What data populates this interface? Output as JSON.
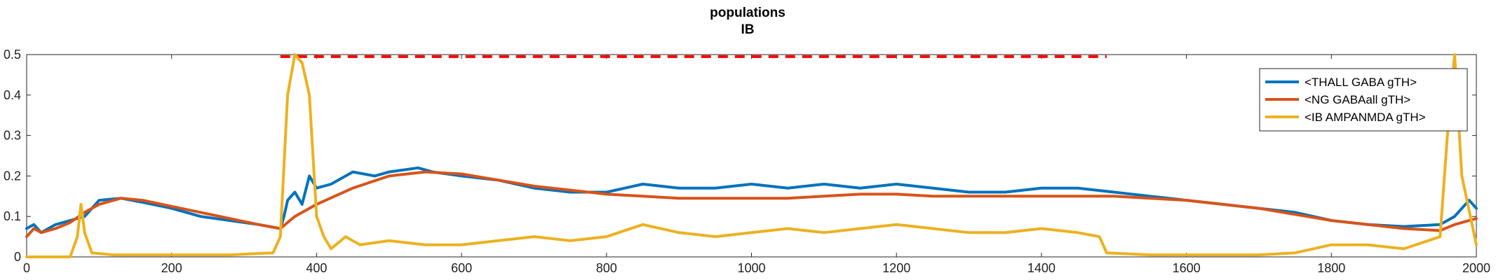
{
  "chart_data": {
    "type": "line",
    "title": "populations",
    "subtitle": "IB",
    "xlabel": "",
    "ylabel": "",
    "xlim": [
      0,
      2000
    ],
    "ylim": [
      0,
      0.5
    ],
    "xticks": [
      0,
      200,
      400,
      600,
      800,
      1000,
      1200,
      1400,
      1600,
      1800,
      2000
    ],
    "yticks": [
      0,
      0.1,
      0.2,
      0.3,
      0.4,
      0.5
    ],
    "xtick_labels": [
      "0",
      "200",
      "400",
      "600",
      "800",
      "1000",
      "1200",
      "1400",
      "1600",
      "1800",
      "2000"
    ],
    "ytick_labels": [
      "0",
      "0.1",
      "0.2",
      "0.3",
      "0.4",
      "0.5"
    ],
    "grid": false,
    "legend_position": "top-right",
    "series": [
      {
        "name": "<THALL GABA gTH>",
        "color": "#0072BD",
        "x": [
          0,
          10,
          20,
          40,
          60,
          80,
          100,
          130,
          160,
          200,
          240,
          280,
          320,
          350,
          355,
          360,
          370,
          380,
          390,
          400,
          420,
          450,
          480,
          500,
          540,
          560,
          600,
          650,
          700,
          750,
          800,
          850,
          900,
          950,
          1000,
          1050,
          1100,
          1150,
          1200,
          1250,
          1300,
          1350,
          1400,
          1450,
          1500,
          1550,
          1600,
          1650,
          1700,
          1750,
          1800,
          1850,
          1900,
          1950,
          1970,
          1990,
          2000
        ],
        "y": [
          0.07,
          0.08,
          0.06,
          0.08,
          0.09,
          0.1,
          0.14,
          0.145,
          0.135,
          0.12,
          0.1,
          0.09,
          0.08,
          0.07,
          0.1,
          0.14,
          0.16,
          0.13,
          0.2,
          0.17,
          0.18,
          0.21,
          0.2,
          0.21,
          0.22,
          0.21,
          0.2,
          0.19,
          0.17,
          0.16,
          0.16,
          0.18,
          0.17,
          0.17,
          0.18,
          0.17,
          0.18,
          0.17,
          0.18,
          0.17,
          0.16,
          0.16,
          0.17,
          0.17,
          0.16,
          0.15,
          0.14,
          0.13,
          0.12,
          0.11,
          0.09,
          0.08,
          0.075,
          0.08,
          0.1,
          0.14,
          0.12
        ]
      },
      {
        "name": "<NG GABAall gTH>",
        "color": "#D95319",
        "x": [
          0,
          10,
          20,
          40,
          60,
          80,
          100,
          130,
          160,
          200,
          240,
          280,
          320,
          350,
          370,
          400,
          450,
          500,
          550,
          600,
          650,
          700,
          750,
          800,
          850,
          900,
          950,
          1000,
          1050,
          1100,
          1150,
          1200,
          1250,
          1300,
          1350,
          1400,
          1450,
          1500,
          1550,
          1600,
          1650,
          1700,
          1750,
          1800,
          1850,
          1900,
          1950,
          1970,
          2000
        ],
        "y": [
          0.05,
          0.07,
          0.06,
          0.07,
          0.085,
          0.11,
          0.13,
          0.145,
          0.14,
          0.125,
          0.11,
          0.095,
          0.08,
          0.07,
          0.1,
          0.13,
          0.17,
          0.2,
          0.21,
          0.205,
          0.19,
          0.175,
          0.165,
          0.155,
          0.15,
          0.145,
          0.145,
          0.145,
          0.145,
          0.15,
          0.155,
          0.155,
          0.15,
          0.15,
          0.15,
          0.15,
          0.15,
          0.15,
          0.145,
          0.14,
          0.13,
          0.12,
          0.105,
          0.09,
          0.08,
          0.07,
          0.065,
          0.08,
          0.095
        ]
      },
      {
        "name": "<IB AMPANMDA gTH>",
        "color": "#EDB120",
        "x": [
          0,
          60,
          70,
          75,
          80,
          90,
          120,
          200,
          280,
          340,
          350,
          360,
          370,
          380,
          390,
          400,
          410,
          420,
          440,
          460,
          500,
          550,
          600,
          650,
          700,
          750,
          800,
          850,
          900,
          950,
          1000,
          1050,
          1100,
          1150,
          1200,
          1250,
          1300,
          1350,
          1400,
          1450,
          1480,
          1490,
          1550,
          1600,
          1700,
          1750,
          1800,
          1850,
          1900,
          1950,
          1960,
          1970,
          1980,
          2000
        ],
        "y": [
          0.0,
          0.0,
          0.05,
          0.13,
          0.06,
          0.01,
          0.005,
          0.005,
          0.005,
          0.01,
          0.05,
          0.4,
          0.5,
          0.48,
          0.4,
          0.1,
          0.05,
          0.02,
          0.05,
          0.03,
          0.04,
          0.03,
          0.03,
          0.04,
          0.05,
          0.04,
          0.05,
          0.08,
          0.06,
          0.05,
          0.06,
          0.07,
          0.06,
          0.07,
          0.08,
          0.07,
          0.06,
          0.06,
          0.07,
          0.06,
          0.05,
          0.01,
          0.005,
          0.005,
          0.005,
          0.01,
          0.03,
          0.03,
          0.02,
          0.05,
          0.3,
          0.5,
          0.2,
          0.03
        ]
      }
    ],
    "annotations": [
      {
        "kind": "dashed-hline",
        "color": "#FF0000",
        "y": 0.495,
        "x_start": 350,
        "x_end": 1490
      }
    ]
  }
}
